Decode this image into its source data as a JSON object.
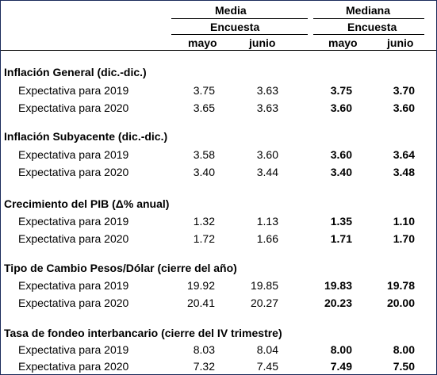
{
  "header": {
    "media": "Media",
    "mediana": "Mediana",
    "encuesta": "Encuesta",
    "mayo": "mayo",
    "junio": "junio"
  },
  "sections": [
    {
      "title": "Inflación General (dic.-dic.)",
      "rows": [
        {
          "label": "Expectativa para 2019",
          "media_mayo": "3.75",
          "media_junio": "3.63",
          "mediana_mayo": "3.75",
          "mediana_junio": "3.70"
        },
        {
          "label": "Expectativa para 2020",
          "media_mayo": "3.65",
          "media_junio": "3.63",
          "mediana_mayo": "3.60",
          "mediana_junio": "3.60"
        }
      ]
    },
    {
      "title": "Inflación Subyacente (dic.-dic.)",
      "rows": [
        {
          "label": "Expectativa para 2019",
          "media_mayo": "3.58",
          "media_junio": "3.60",
          "mediana_mayo": "3.60",
          "mediana_junio": "3.64"
        },
        {
          "label": "Expectativa para 2020",
          "media_mayo": "3.40",
          "media_junio": "3.44",
          "mediana_mayo": "3.40",
          "mediana_junio": "3.48"
        }
      ]
    },
    {
      "title": "Crecimiento del PIB (Δ% anual)",
      "rows": [
        {
          "label": "Expectativa para 2019",
          "media_mayo": "1.32",
          "media_junio": "1.13",
          "mediana_mayo": "1.35",
          "mediana_junio": "1.10"
        },
        {
          "label": "Expectativa para 2020",
          "media_mayo": "1.72",
          "media_junio": "1.66",
          "mediana_mayo": "1.71",
          "mediana_junio": "1.70"
        }
      ]
    },
    {
      "title": "Tipo de Cambio Pesos/Dólar (cierre del año)",
      "rows": [
        {
          "label": "Expectativa para 2019",
          "media_mayo": "19.92",
          "media_junio": "19.85",
          "mediana_mayo": "19.83",
          "mediana_junio": "19.78"
        },
        {
          "label": "Expectativa para 2020",
          "media_mayo": "20.41",
          "media_junio": "20.27",
          "mediana_mayo": "20.23",
          "mediana_junio": "20.00"
        }
      ]
    },
    {
      "title": "Tasa de fondeo interbancario (cierre del IV trimestre)",
      "rows": [
        {
          "label": "Expectativa para 2019",
          "media_mayo": "8.03",
          "media_junio": "8.04",
          "mediana_mayo": "8.00",
          "mediana_junio": "8.00"
        },
        {
          "label": "Expectativa para 2020",
          "media_mayo": "7.32",
          "media_junio": "7.45",
          "mediana_mayo": "7.49",
          "mediana_junio": "7.50"
        }
      ]
    }
  ]
}
